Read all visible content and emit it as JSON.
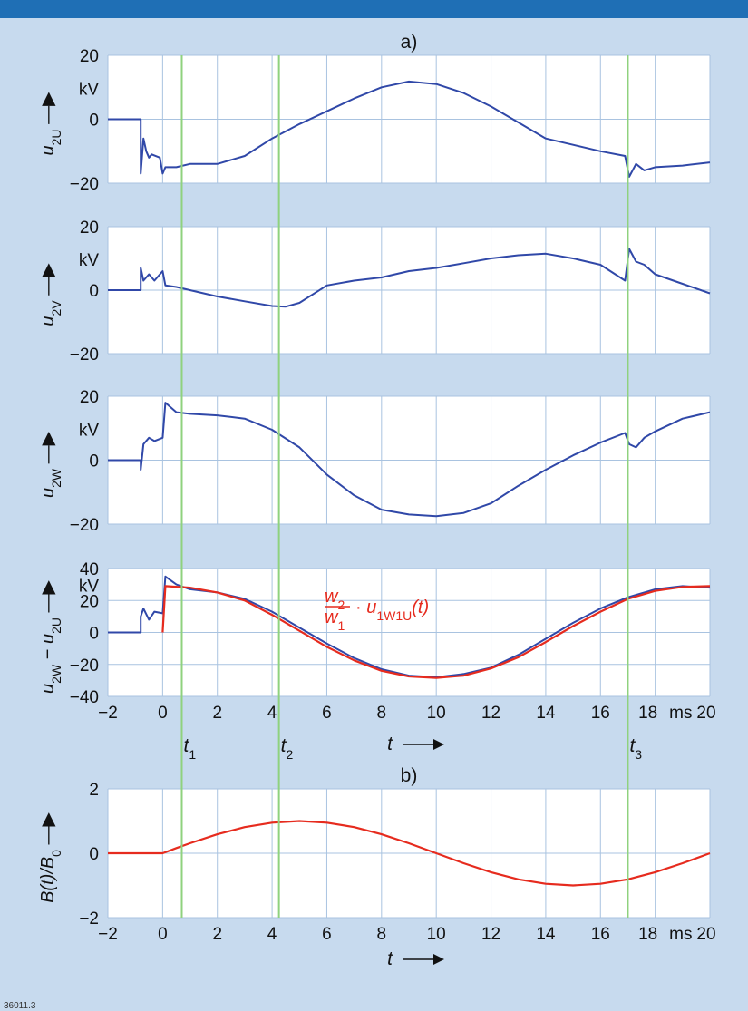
{
  "figure_id": "36011.3",
  "colors": {
    "header": "#1f6fb5",
    "background": "#c7daee",
    "plot_bg": "#ffffff",
    "grid": "#a9c3e0",
    "marker_line": "#8fd27e",
    "measured": "#3048a8",
    "theory": "#e62b1e"
  },
  "time_markers": [
    {
      "label": "t",
      "sub": "1",
      "t": 0.7
    },
    {
      "label": "t",
      "sub": "2",
      "t": 4.25
    },
    {
      "label": "t",
      "sub": "3",
      "t": 17.0
    }
  ],
  "t_axis_label": "t",
  "chart_data": [
    {
      "type": "line",
      "panel_label": "a)",
      "ylabel": {
        "var": "u",
        "sub": "2U"
      },
      "unit": "kV",
      "xlim": [
        -2,
        20
      ],
      "ylim": [
        -20,
        20
      ],
      "yticks": [
        "20",
        "0",
        "−20"
      ],
      "grid": true,
      "series": [
        {
          "x": [
            -2,
            -0.8,
            -0.8,
            -0.7,
            -0.6,
            -0.5,
            -0.4,
            -0.1,
            0,
            0.1,
            0.5,
            1,
            1.5,
            2,
            3,
            4,
            5,
            6,
            7,
            8,
            9,
            10,
            11,
            12,
            13,
            14,
            15,
            16,
            16.9,
            17.05,
            17.3,
            17.6,
            18,
            19,
            20
          ],
          "y": [
            0,
            0,
            -17,
            -6,
            -10,
            -12,
            -11,
            -12,
            -17,
            -15,
            -15,
            -14,
            -14,
            -14,
            -11.5,
            -6,
            -1.5,
            2.5,
            6.5,
            10,
            11.8,
            11,
            8.2,
            4,
            -1,
            -6,
            -8,
            -10,
            -11.5,
            -18,
            -14,
            -16,
            -15,
            -14.5,
            -13.5
          ]
        }
      ]
    },
    {
      "type": "line",
      "ylabel": {
        "var": "u",
        "sub": "2V"
      },
      "unit": "kV",
      "xlim": [
        -2,
        20
      ],
      "ylim": [
        -20,
        20
      ],
      "yticks": [
        "20",
        "0",
        "−20"
      ],
      "grid": true,
      "series": [
        {
          "x": [
            -2,
            -0.8,
            -0.8,
            -0.7,
            -0.5,
            -0.3,
            0,
            0.1,
            0.5,
            1,
            2,
            3,
            4,
            4.5,
            5,
            6,
            7,
            8,
            9,
            10,
            11,
            12,
            13,
            14,
            15,
            16,
            16.9,
            17.05,
            17.3,
            17.6,
            18,
            19,
            20
          ],
          "y": [
            0,
            0,
            7,
            3,
            5,
            3,
            6,
            1.5,
            1,
            0,
            -2,
            -3.5,
            -5,
            -5.2,
            -4,
            1.5,
            3,
            4,
            6,
            7,
            8.5,
            10,
            11,
            11.5,
            10,
            8,
            3,
            13,
            9,
            8,
            5,
            2,
            -1
          ]
        }
      ]
    },
    {
      "type": "line",
      "ylabel": {
        "var": "u",
        "sub": "2W"
      },
      "unit": "kV",
      "xlim": [
        -2,
        20
      ],
      "ylim": [
        -20,
        20
      ],
      "yticks": [
        "20",
        "0",
        "−20"
      ],
      "grid": true,
      "series": [
        {
          "x": [
            -2,
            -0.8,
            -0.8,
            -0.7,
            -0.5,
            -0.3,
            0,
            0.1,
            0.5,
            1,
            2,
            3,
            4,
            5,
            6,
            7,
            8,
            9,
            10,
            11,
            12,
            13,
            14,
            15,
            16,
            16.9,
            17.05,
            17.3,
            17.6,
            18,
            19,
            20
          ],
          "y": [
            0,
            0,
            -3,
            5,
            7,
            6,
            7,
            18,
            15,
            14.5,
            14,
            13,
            9.5,
            4,
            -4.5,
            -11,
            -15.5,
            -17,
            -17.5,
            -16.5,
            -13.5,
            -8,
            -3,
            1.5,
            5.5,
            8.5,
            5,
            4,
            7,
            9,
            13,
            15
          ]
        }
      ]
    },
    {
      "type": "line",
      "ylabel": {
        "var": "u",
        "sub": "2W",
        "minus_var": "u",
        "minus_sub": "2U"
      },
      "unit": "kV",
      "xlim": [
        -2,
        20
      ],
      "ylim": [
        -40,
        40
      ],
      "yticks": [
        "40",
        "20",
        "0",
        "−20",
        "−40"
      ],
      "xticks": [
        "−2",
        "0",
        "2",
        "4",
        "6",
        "8",
        "10",
        "12",
        "14",
        "16",
        "18",
        "20"
      ],
      "x_unit": "ms",
      "annotation": {
        "frac_num": "w",
        "frac_num_sub": "2",
        "frac_den": "w",
        "frac_den_sub": "1",
        "expr": "u",
        "expr_sub": "1W1U",
        "arg": "(t)"
      },
      "grid": true,
      "series": [
        {
          "x": [
            -2,
            -0.8,
            -0.8,
            -0.7,
            -0.5,
            -0.3,
            0,
            0.1,
            0.5,
            1,
            2,
            3,
            4,
            5,
            6,
            7,
            8,
            9,
            10,
            11,
            12,
            13,
            14,
            15,
            16,
            17,
            18,
            19,
            20
          ],
          "y": [
            0,
            0,
            10,
            15,
            8,
            13,
            12,
            35,
            30,
            27,
            25,
            21,
            13,
            3,
            -7,
            -16,
            -23,
            -27,
            -28,
            -26,
            -22,
            -14,
            -4,
            6,
            15,
            22,
            27,
            29,
            28
          ]
        },
        {
          "x": [
            0,
            0.1,
            1,
            2,
            3,
            4,
            5,
            6,
            7,
            8,
            9,
            10,
            11,
            12,
            13,
            14,
            15,
            16,
            17,
            18,
            19,
            20
          ],
          "y": [
            0,
            29,
            28,
            25,
            20,
            11,
            1,
            -9,
            -17.5,
            -24,
            -27.5,
            -28.5,
            -27,
            -22.5,
            -15.5,
            -6,
            4,
            13,
            21,
            26,
            28.5,
            29
          ]
        }
      ]
    },
    {
      "type": "line",
      "panel_label": "b)",
      "ylabel": {
        "text": "B(t)/B",
        "sub": "0"
      },
      "xlim": [
        -2,
        20
      ],
      "ylim": [
        -2,
        2
      ],
      "yticks": [
        "2",
        "0",
        "−2"
      ],
      "xticks": [
        "−2",
        "0",
        "2",
        "4",
        "6",
        "8",
        "10",
        "12",
        "14",
        "16",
        "18",
        "20"
      ],
      "x_unit": "ms",
      "grid": true,
      "series": [
        {
          "x": [
            -2,
            0,
            0.5,
            1,
            2,
            3,
            4,
            5,
            6,
            7,
            8,
            9,
            10,
            11,
            12,
            13,
            14,
            15,
            16,
            17,
            18,
            19,
            20
          ],
          "y": [
            0,
            0,
            0.16,
            0.31,
            0.59,
            0.81,
            0.95,
            1,
            0.95,
            0.81,
            0.59,
            0.31,
            0,
            -0.31,
            -0.59,
            -0.81,
            -0.95,
            -1,
            -0.95,
            -0.81,
            -0.59,
            -0.31,
            0
          ]
        }
      ]
    }
  ]
}
